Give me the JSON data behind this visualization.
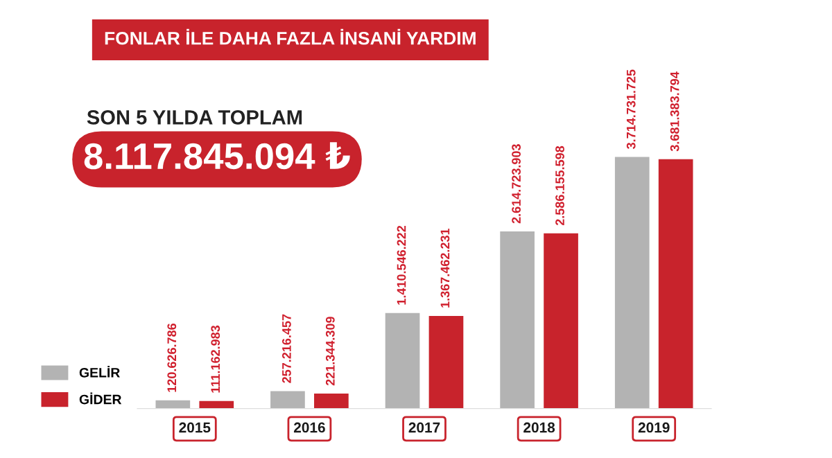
{
  "chart_data": {
    "type": "bar",
    "title": "FONLAR İLE DAHA FAZLA İNSANİ YARDIM",
    "subtitle": "SON 5 YILDA TOPLAM",
    "annotations": [
      "8.117.845.094 ₺"
    ],
    "categories": [
      "2015",
      "2016",
      "2017",
      "2018",
      "2019"
    ],
    "series": [
      {
        "name": "GELİR",
        "color": "#b3b3b3",
        "values": [
          120626786,
          257216457,
          1410546222,
          2614723903,
          3714731725
        ],
        "value_labels": [
          "120.626.786",
          "257.216.457",
          "1.410.546.222",
          "2.614.723.903",
          "3.714.731.725"
        ]
      },
      {
        "name": "GİDER",
        "color": "#c8232c",
        "values": [
          111162983,
          221344309,
          1367462231,
          2586155598,
          3681383794
        ],
        "value_labels": [
          "111.162.983",
          "221.344.309",
          "1.367.462.231",
          "2.586.155.598",
          "3.681.383.794"
        ]
      }
    ],
    "legend": "bottom left"
  }
}
